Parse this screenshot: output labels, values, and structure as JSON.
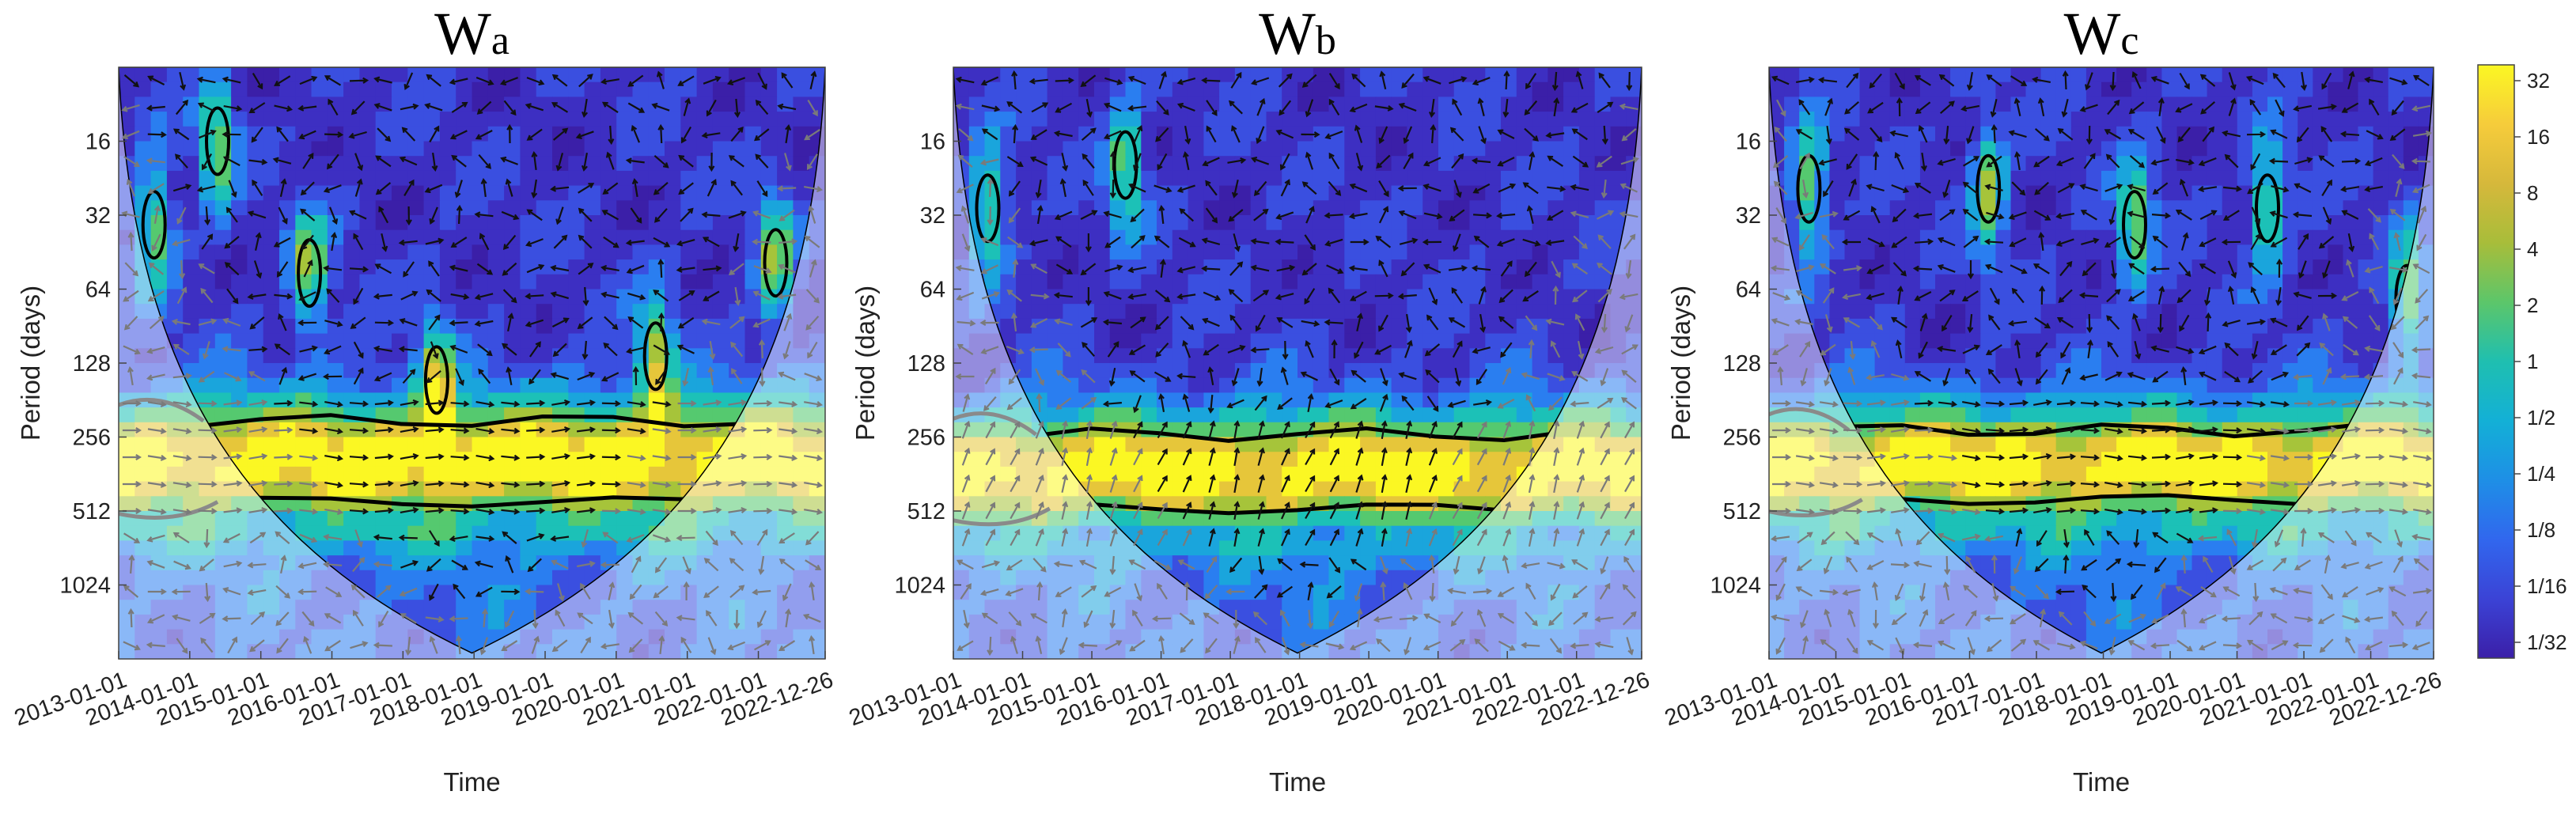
{
  "chart_data": [
    {
      "type": "heatmap",
      "subtype": "wavelet-coherence",
      "title_main": "W",
      "title_sub": "a",
      "xlabel": "Time",
      "ylabel": "Period (days)",
      "x_ticks": [
        "2013-01-01",
        "2014-01-01",
        "2015-01-01",
        "2016-01-01",
        "2017-01-01",
        "2018-01-01",
        "2019-01-01",
        "2020-01-01",
        "2021-01-01",
        "2022-01-01",
        "2022-12-26"
      ],
      "y_ticks": [
        16,
        32,
        64,
        128,
        256,
        512,
        1024
      ],
      "ylim": [
        8,
        2048
      ],
      "significant_band_period": [
        220,
        470
      ],
      "features": [
        {
          "x": 0.05,
          "period": 35
        },
        {
          "x": 0.14,
          "period": 16
        },
        {
          "x": 0.27,
          "period": 55
        },
        {
          "x": 0.45,
          "period": 150
        },
        {
          "x": 0.76,
          "period": 120
        },
        {
          "x": 0.93,
          "period": 50
        }
      ]
    },
    {
      "type": "heatmap",
      "subtype": "wavelet-coherence",
      "title_main": "W",
      "title_sub": "b",
      "xlabel": "Time",
      "ylabel": "Period (days)",
      "x_ticks": [
        "2013-01-01",
        "2014-01-01",
        "2015-01-01",
        "2016-01-01",
        "2017-01-01",
        "2018-01-01",
        "2019-01-01",
        "2020-01-01",
        "2021-01-01",
        "2022-01-01",
        "2022-12-26"
      ],
      "y_ticks": [
        16,
        32,
        64,
        128,
        256,
        512,
        1024
      ],
      "ylim": [
        8,
        2048
      ],
      "significant_band_period": [
        250,
        500
      ],
      "features": [
        {
          "x": 0.05,
          "period": 30
        },
        {
          "x": 0.25,
          "period": 20
        }
      ]
    },
    {
      "type": "heatmap",
      "subtype": "wavelet-coherence",
      "title_main": "W",
      "title_sub": "c",
      "xlabel": "Time",
      "ylabel": "Period (days)",
      "x_ticks": [
        "2013-01-01",
        "2014-01-01",
        "2015-01-01",
        "2016-01-01",
        "2017-01-01",
        "2018-01-01",
        "2019-01-01",
        "2020-01-01",
        "2021-01-01",
        "2022-01-01",
        "2022-12-26"
      ],
      "y_ticks": [
        16,
        32,
        64,
        128,
        256,
        512,
        1024
      ],
      "ylim": [
        8,
        2048
      ],
      "significant_band_period": [
        240,
        460
      ],
      "features": [
        {
          "x": 0.06,
          "period": 25
        },
        {
          "x": 0.33,
          "period": 25
        },
        {
          "x": 0.55,
          "period": 35
        },
        {
          "x": 0.75,
          "period": 30
        },
        {
          "x": 0.96,
          "period": 70
        }
      ]
    }
  ],
  "colorbar": {
    "labels": [
      "32",
      "16",
      "8",
      "4",
      "2",
      "1",
      "1/2",
      "1/4",
      "1/8",
      "1/16",
      "1/32"
    ],
    "stops": [
      "#fbf723",
      "#f6cc3b",
      "#d6b83b",
      "#a8bd3a",
      "#5cc66a",
      "#1fbfb0",
      "#13b0d6",
      "#1e8fe6",
      "#3167ee",
      "#3b43d6",
      "#3b1fa8"
    ]
  }
}
